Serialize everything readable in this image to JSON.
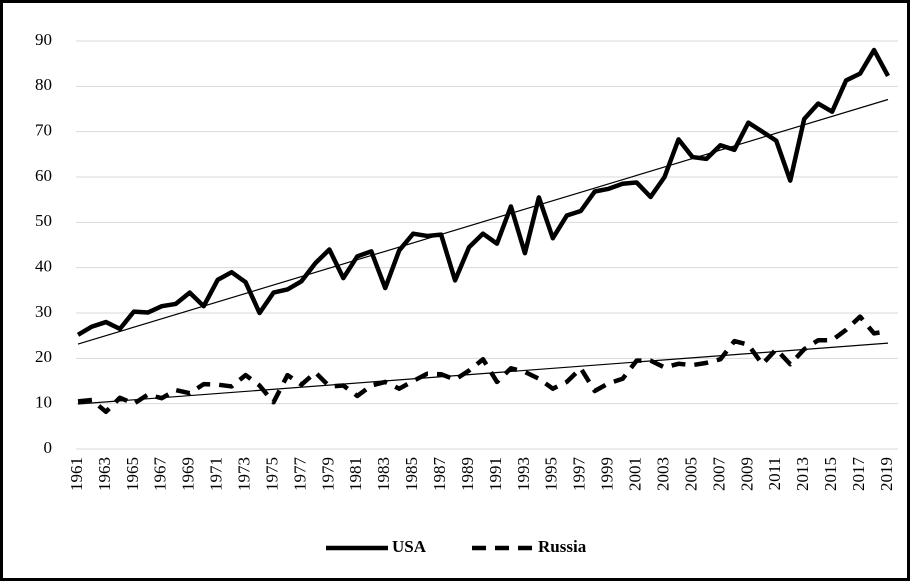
{
  "chart_data": {
    "type": "line",
    "x": [
      1961,
      1962,
      1963,
      1964,
      1965,
      1966,
      1967,
      1968,
      1969,
      1970,
      1971,
      1972,
      1973,
      1974,
      1975,
      1976,
      1977,
      1978,
      1979,
      1980,
      1981,
      1982,
      1983,
      1984,
      1985,
      1986,
      1987,
      1988,
      1989,
      1990,
      1991,
      1992,
      1993,
      1994,
      1995,
      1996,
      1997,
      1998,
      1999,
      2000,
      2001,
      2002,
      2003,
      2004,
      2005,
      2006,
      2007,
      2008,
      2009,
      2010,
      2011,
      2012,
      2013,
      2014,
      2015,
      2016,
      2017,
      2018,
      2019
    ],
    "series": [
      {
        "name": "USA",
        "color": "#000000",
        "dash": "solid",
        "values": [
          25.2,
          27,
          28,
          26.5,
          30.3,
          30.1,
          31.5,
          32,
          34.5,
          31.5,
          37.3,
          39,
          36.8,
          30,
          34.5,
          35.2,
          37,
          41,
          44,
          37.7,
          42.5,
          43.6,
          35.5,
          43.8,
          47.5,
          47,
          47.3,
          37.2,
          44.5,
          47.5,
          45.3,
          53.5,
          43.2,
          55.5,
          46.5,
          51.5,
          52.5,
          56.8,
          57.4,
          58.5,
          58.8,
          55.6,
          60,
          68.3,
          64.4,
          64,
          67,
          66,
          72,
          70,
          68,
          59.2,
          72.8,
          76.2,
          74.4,
          81.3,
          82.8,
          88,
          82.3
        ]
      },
      {
        "name": "Russia",
        "color": "#000000",
        "dash": "dashed",
        "values": [
          10.5,
          10.8,
          8.2,
          11.3,
          10,
          12,
          11.2,
          13,
          12.3,
          14.3,
          14.2,
          13.8,
          16.3,
          14,
          10.3,
          16.3,
          14.2,
          16.9,
          13.8,
          14,
          11.7,
          14,
          14.8,
          13.3,
          15,
          16.6,
          16.5,
          15.3,
          17.3,
          19.8,
          14.8,
          17.8,
          17,
          15.5,
          13.3,
          14.8,
          17.8,
          12.8,
          14.5,
          15.5,
          19.5,
          19.5,
          18,
          18.8,
          18.5,
          19,
          19.8,
          23.8,
          23,
          18.7,
          22,
          18.7,
          22,
          24,
          24,
          26.3,
          29.2,
          25.5,
          26
        ]
      }
    ],
    "xlim": [
      1961,
      2019
    ],
    "xticks": [
      1961,
      1963,
      1965,
      1967,
      1969,
      1971,
      1973,
      1975,
      1977,
      1979,
      1981,
      1983,
      1985,
      1987,
      1989,
      1991,
      1993,
      1995,
      1997,
      1999,
      2001,
      2003,
      2005,
      2007,
      2009,
      2011,
      2013,
      2015,
      2017,
      2019
    ],
    "ylim": [
      0,
      90
    ],
    "yticks": [
      0,
      10,
      20,
      30,
      40,
      50,
      60,
      70,
      80,
      90
    ],
    "grid": true,
    "trendline": true,
    "legend": "bottom"
  }
}
